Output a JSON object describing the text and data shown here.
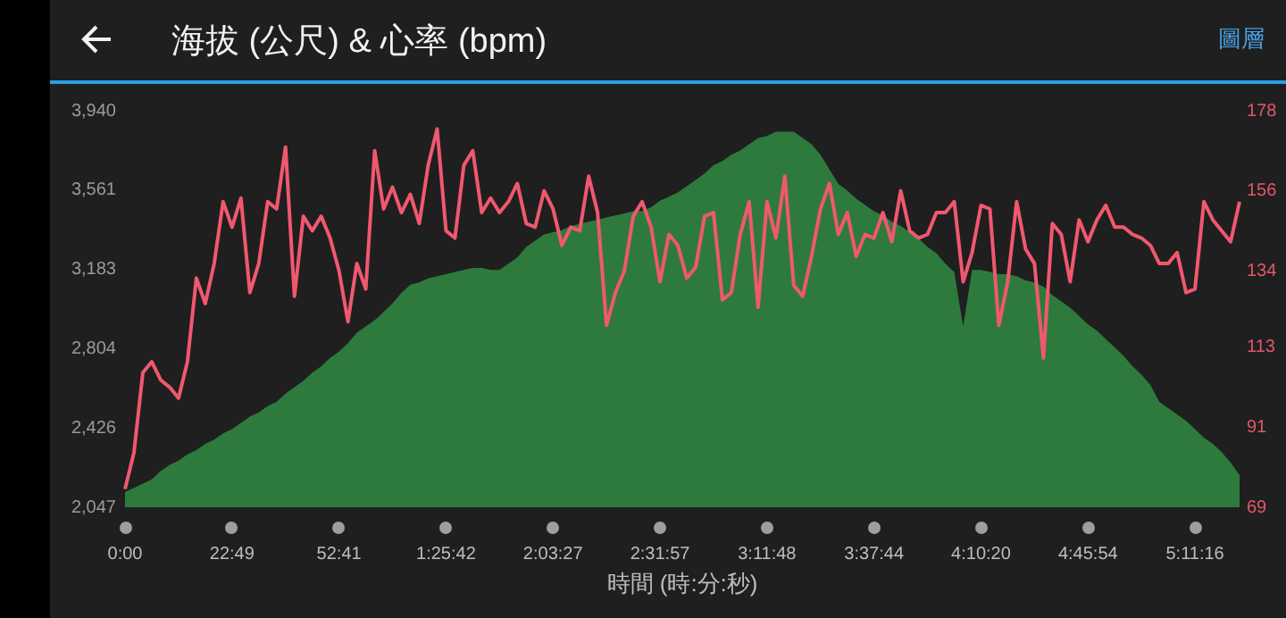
{
  "chart_data": {
    "type": "area",
    "title": "海拔 (公尺) & 心率 (bpm)",
    "xlabel": "時間 (時:分:秒)",
    "annotations": [
      "圖層"
    ],
    "categories": [
      "0:00",
      null,
      null,
      null,
      null,
      null,
      null,
      null,
      null,
      null,
      null,
      null,
      "22:49",
      null,
      null,
      null,
      null,
      null,
      null,
      null,
      null,
      null,
      null,
      null,
      "52:41",
      null,
      null,
      null,
      null,
      null,
      null,
      null,
      null,
      null,
      null,
      null,
      "1:25:42",
      null,
      null,
      null,
      null,
      null,
      null,
      null,
      null,
      null,
      null,
      null,
      "2:03:27",
      null,
      null,
      null,
      null,
      null,
      null,
      null,
      null,
      null,
      null,
      null,
      "2:31:57",
      null,
      null,
      null,
      null,
      null,
      null,
      null,
      null,
      null,
      null,
      null,
      "3:11:48",
      null,
      null,
      null,
      null,
      null,
      null,
      null,
      null,
      null,
      null,
      null,
      "3:37:44",
      null,
      null,
      null,
      null,
      null,
      null,
      null,
      null,
      null,
      null,
      null,
      "4:10:20",
      null,
      null,
      null,
      null,
      null,
      null,
      null,
      null,
      null,
      null,
      null,
      "4:45:54",
      null,
      null,
      null,
      null,
      null,
      null,
      null,
      null,
      null,
      null,
      null,
      "5:11:16",
      null,
      null,
      null,
      null,
      null
    ],
    "ylim": [
      2047,
      3940
    ],
    "yticks": [
      {
        "value": 2047,
        "label": "2,047"
      },
      {
        "value": 2426,
        "label": "2,426"
      },
      {
        "value": 2804,
        "label": "2,804"
      },
      {
        "value": 3183,
        "label": "3,183"
      },
      {
        "value": 3561,
        "label": "3,561"
      },
      {
        "value": 3940,
        "label": "3,940"
      }
    ],
    "y2lim": [
      69,
      178
    ],
    "y2ticks": [
      69,
      91,
      113,
      134,
      156,
      178
    ],
    "series": [
      {
        "color": "#2e7a3c",
        "values": [
          2120,
          2140,
          2160,
          2180,
          2220,
          2250,
          2270,
          2300,
          2320,
          2350,
          2370,
          2400,
          2420,
          2450,
          2480,
          2500,
          2530,
          2550,
          2590,
          2620,
          2650,
          2690,
          2720,
          2760,
          2790,
          2830,
          2880,
          2910,
          2940,
          2980,
          3020,
          3070,
          3110,
          3120,
          3140,
          3150,
          3160,
          3170,
          3180,
          3190,
          3190,
          3180,
          3180,
          3210,
          3240,
          3290,
          3320,
          3350,
          3360,
          3370,
          3390,
          3400,
          3410,
          3420,
          3430,
          3440,
          3450,
          3460,
          3460,
          3480,
          3510,
          3530,
          3550,
          3580,
          3610,
          3640,
          3680,
          3700,
          3730,
          3750,
          3780,
          3810,
          3820,
          3840,
          3840,
          3840,
          3810,
          3780,
          3730,
          3660,
          3590,
          3560,
          3520,
          3490,
          3460,
          3440,
          3410,
          3390,
          3360,
          3330,
          3290,
          3260,
          3210,
          3170,
          2910,
          3180,
          3180,
          3170,
          3160,
          3160,
          3150,
          3130,
          3120,
          3100,
          3060,
          3030,
          3000,
          2960,
          2920,
          2890,
          2850,
          2810,
          2770,
          2720,
          2680,
          2630,
          2550,
          2520,
          2490,
          2460,
          2420,
          2380,
          2350,
          2310,
          2260,
          2200
        ]
      },
      {
        "type": "line",
        "axis": "y2",
        "color": "#f0586f",
        "values": [
          74,
          84,
          106,
          109,
          104,
          102,
          99,
          109,
          132,
          125,
          136,
          153,
          146,
          154,
          128,
          136,
          153,
          151,
          168,
          127,
          149,
          145,
          149,
          143,
          134,
          120,
          136,
          129,
          167,
          151,
          157,
          150,
          155,
          147,
          163,
          173,
          145,
          143,
          163,
          167,
          150,
          154,
          150,
          153,
          158,
          147,
          146,
          156,
          151,
          141,
          146,
          145,
          160,
          150,
          119,
          128,
          134,
          149,
          153,
          146,
          131,
          144,
          141,
          132,
          135,
          149,
          150,
          126,
          128,
          144,
          153,
          124,
          153,
          143,
          160,
          130,
          127,
          138,
          151,
          158,
          144,
          150,
          138,
          144,
          143,
          150,
          142,
          156,
          145,
          143,
          144,
          150,
          150,
          153,
          131,
          139,
          152,
          151,
          119,
          131,
          153,
          140,
          136,
          110,
          147,
          144,
          131,
          148,
          142,
          148,
          152,
          146,
          146,
          144,
          143,
          141,
          136,
          136,
          139,
          128,
          129,
          153,
          148,
          145,
          142,
          153
        ]
      }
    ]
  }
}
